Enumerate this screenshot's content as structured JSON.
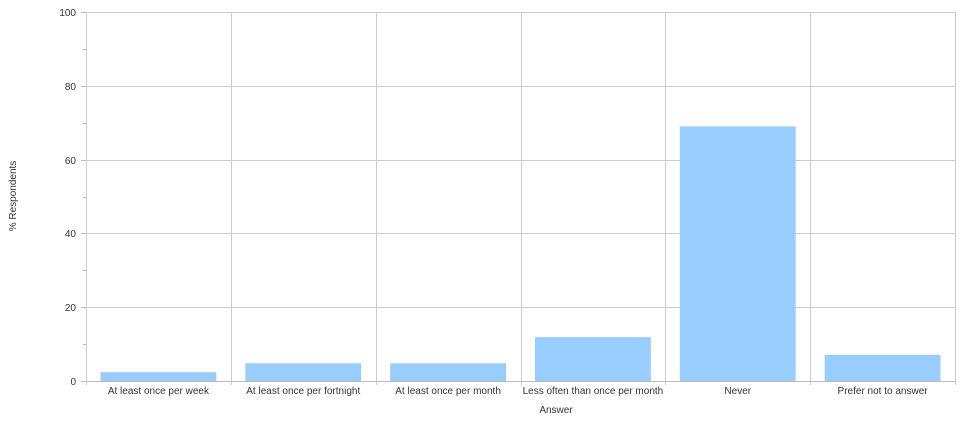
{
  "chart_data": {
    "type": "bar",
    "title": "",
    "xlabel": "Answer",
    "ylabel": "% Respondents",
    "ylim": [
      0,
      100
    ],
    "yticks": [
      0,
      20,
      40,
      60,
      80,
      100
    ],
    "grid": true,
    "categories": [
      "At least once per week",
      "At least once per fortnight",
      "At least once per month",
      "Less often than once per month",
      "Never",
      "Prefer not to answer"
    ],
    "values": [
      2.4,
      4.8,
      4.8,
      11.9,
      69.0,
      7.1
    ],
    "bar_color": "#99ccff",
    "grid_color": "#cccccc"
  }
}
